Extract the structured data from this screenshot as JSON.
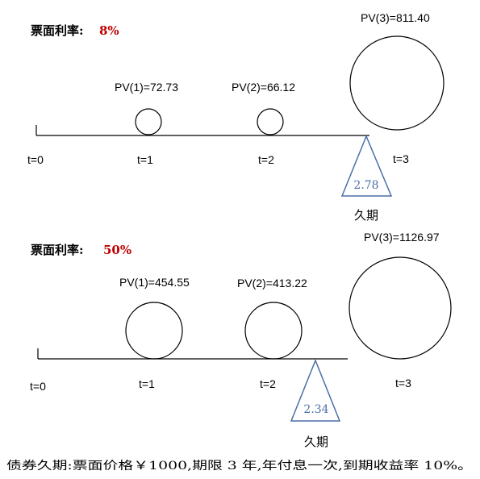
{
  "panels": [
    {
      "coupon_label": "票面利率:",
      "coupon_value": "8%",
      "times": [
        "t=0",
        "t=1",
        "t=2",
        "t=3"
      ],
      "pv_labels": [
        "PV(1)=72.73",
        "PV(2)=66.12",
        "PV(3)=811.40"
      ],
      "pv_values": [
        72.73,
        66.12,
        811.4
      ],
      "duration_value": "2.78",
      "duration_label": "久期"
    },
    {
      "coupon_label": "票面利率:",
      "coupon_value": "50%",
      "times": [
        "t=0",
        "t=1",
        "t=2",
        "t=3"
      ],
      "pv_labels": [
        "PV(1)=454.55",
        "PV(2)=413.22",
        "PV(3)=1126.97"
      ],
      "pv_values": [
        454.55,
        413.22,
        1126.97
      ],
      "duration_value": "2.34",
      "duration_label": "久期"
    }
  ],
  "caption": "债券久期:票面价格￥1000,期限 3 年,年付息一次,到期收益率 10%。",
  "colors": {
    "coupon_value": "#c00000",
    "duration_triangle": "#4a6fa5",
    "line": "#000000"
  }
}
